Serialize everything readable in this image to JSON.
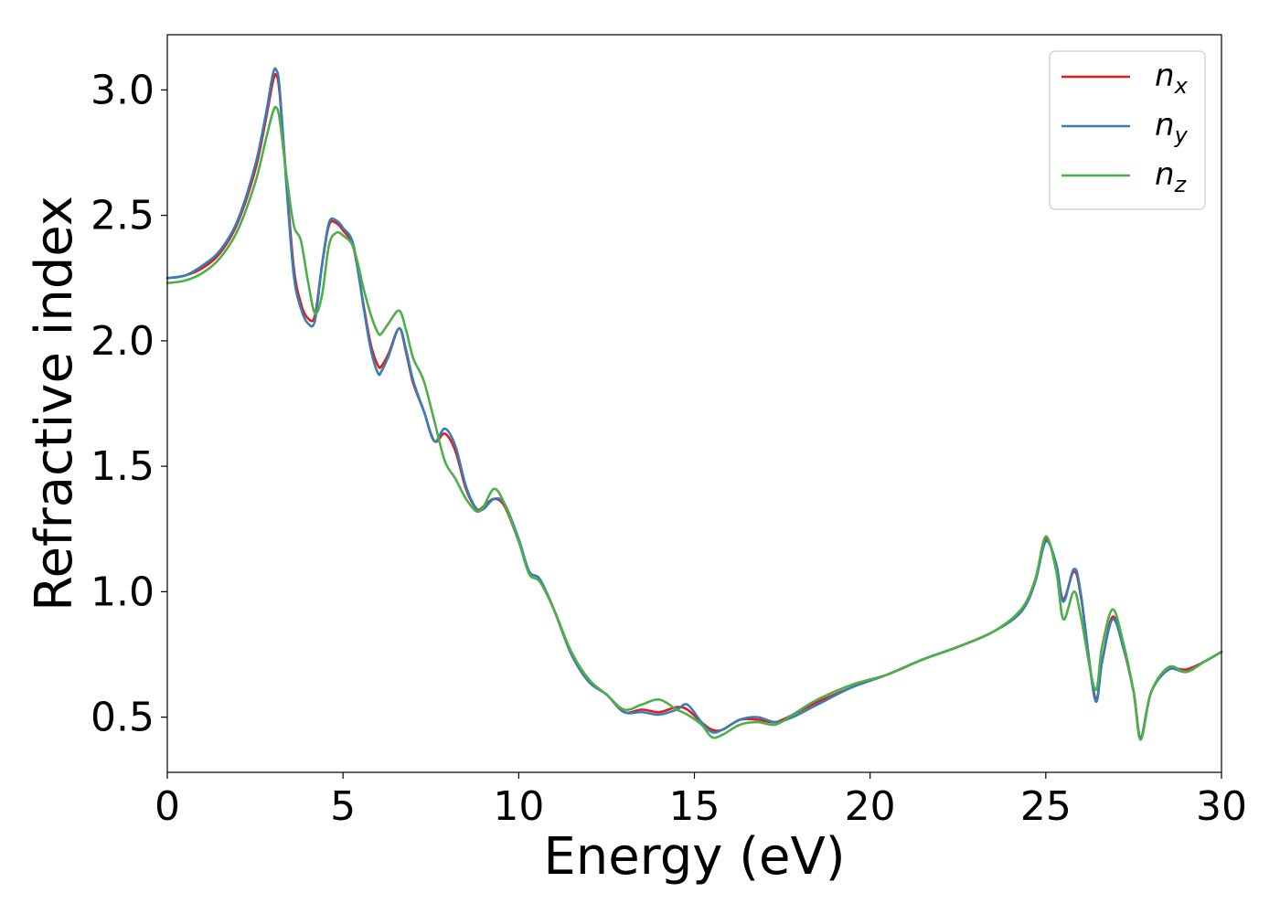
{
  "chart_data": {
    "type": "line",
    "xlabel": "Energy (eV)",
    "ylabel": "Refractive index",
    "xlim": [
      0,
      30
    ],
    "ylim": [
      0.28,
      3.22
    ],
    "xticks": [
      0,
      5,
      10,
      15,
      20,
      25,
      30
    ],
    "xtick_labels": [
      "0",
      "5",
      "10",
      "15",
      "20",
      "25",
      "30"
    ],
    "yticks": [
      0.5,
      1.0,
      1.5,
      2.0,
      2.5,
      3.0
    ],
    "ytick_labels": [
      "0.5",
      "1.0",
      "1.5",
      "2.0",
      "2.5",
      "3.0"
    ],
    "grid": false,
    "legend_position": "top-right",
    "series": [
      {
        "name": "n_x",
        "label_base": "n",
        "label_sub": "x",
        "color": "#e41a1c",
        "x": [
          0,
          0.5,
          1,
          1.5,
          2,
          2.5,
          2.8,
          3.0,
          3.1,
          3.2,
          3.4,
          3.6,
          3.8,
          4.0,
          4.2,
          4.4,
          4.6,
          4.8,
          5.0,
          5.3,
          5.6,
          5.8,
          6.0,
          6.1,
          6.3,
          6.6,
          6.8,
          7.0,
          7.3,
          7.6,
          7.9,
          8.2,
          8.5,
          8.8,
          9.0,
          9.3,
          9.6,
          10.0,
          10.3,
          10.6,
          11.0,
          11.5,
          12.0,
          12.5,
          13.0,
          13.5,
          14.0,
          14.5,
          14.8,
          15.2,
          15.5,
          15.8,
          16.3,
          16.8,
          17.3,
          17.8,
          18.5,
          19.5,
          20.5,
          21.5,
          22.5,
          23.5,
          24.3,
          24.7,
          25.0,
          25.3,
          25.5,
          25.8,
          26.0,
          26.4,
          26.6,
          26.9,
          27.2,
          27.5,
          27.7,
          28.0,
          28.5,
          29.0,
          29.5,
          30.0
        ],
        "y": [
          2.25,
          2.26,
          2.29,
          2.35,
          2.47,
          2.68,
          2.88,
          3.03,
          3.06,
          2.98,
          2.62,
          2.29,
          2.15,
          2.09,
          2.1,
          2.3,
          2.46,
          2.47,
          2.44,
          2.37,
          2.13,
          1.98,
          1.9,
          1.9,
          1.95,
          2.05,
          1.95,
          1.83,
          1.72,
          1.6,
          1.63,
          1.56,
          1.41,
          1.33,
          1.34,
          1.37,
          1.34,
          1.2,
          1.08,
          1.05,
          0.93,
          0.75,
          0.64,
          0.59,
          0.52,
          0.53,
          0.52,
          0.54,
          0.53,
          0.48,
          0.45,
          0.45,
          0.49,
          0.49,
          0.48,
          0.51,
          0.56,
          0.62,
          0.67,
          0.73,
          0.78,
          0.84,
          0.92,
          1.04,
          1.21,
          1.1,
          0.97,
          1.08,
          0.98,
          0.58,
          0.72,
          0.9,
          0.78,
          0.6,
          0.42,
          0.6,
          0.69,
          0.69,
          0.72,
          0.76
        ]
      },
      {
        "name": "n_y",
        "label_base": "n",
        "label_sub": "y",
        "color": "#377eb8",
        "x": [
          0,
          0.5,
          1,
          1.5,
          2,
          2.5,
          2.8,
          3.0,
          3.1,
          3.2,
          3.4,
          3.6,
          3.8,
          4.0,
          4.2,
          4.4,
          4.6,
          4.8,
          5.0,
          5.3,
          5.6,
          5.8,
          6.0,
          6.1,
          6.3,
          6.6,
          6.8,
          7.0,
          7.3,
          7.6,
          7.9,
          8.2,
          8.5,
          8.8,
          9.0,
          9.3,
          9.6,
          10.0,
          10.3,
          10.6,
          11.0,
          11.5,
          12.0,
          12.5,
          13.0,
          13.5,
          14.0,
          14.5,
          14.8,
          15.2,
          15.5,
          15.8,
          16.3,
          16.8,
          17.3,
          17.8,
          18.5,
          19.5,
          20.5,
          21.5,
          22.5,
          23.5,
          24.3,
          24.7,
          25.0,
          25.3,
          25.5,
          25.8,
          26.0,
          26.4,
          26.6,
          26.9,
          27.2,
          27.5,
          27.7,
          28.0,
          28.5,
          29.0,
          29.5,
          30.0
        ],
        "y": [
          2.25,
          2.26,
          2.3,
          2.36,
          2.48,
          2.7,
          2.9,
          3.06,
          3.08,
          3.0,
          2.6,
          2.26,
          2.13,
          2.07,
          2.08,
          2.3,
          2.47,
          2.48,
          2.45,
          2.38,
          2.12,
          1.96,
          1.87,
          1.88,
          1.94,
          2.05,
          1.96,
          1.84,
          1.72,
          1.6,
          1.65,
          1.58,
          1.42,
          1.33,
          1.33,
          1.37,
          1.35,
          1.21,
          1.08,
          1.05,
          0.93,
          0.75,
          0.64,
          0.59,
          0.52,
          0.52,
          0.51,
          0.53,
          0.55,
          0.48,
          0.44,
          0.45,
          0.49,
          0.5,
          0.48,
          0.5,
          0.55,
          0.62,
          0.67,
          0.73,
          0.78,
          0.84,
          0.92,
          1.04,
          1.2,
          1.11,
          0.96,
          1.09,
          0.99,
          0.57,
          0.72,
          0.89,
          0.78,
          0.6,
          0.42,
          0.6,
          0.69,
          0.68,
          0.72,
          0.76
        ]
      },
      {
        "name": "n_z",
        "label_base": "n",
        "label_sub": "z",
        "color": "#4daf4a",
        "x": [
          0,
          0.5,
          1,
          1.5,
          2,
          2.5,
          2.8,
          3.0,
          3.1,
          3.2,
          3.4,
          3.6,
          3.8,
          4.0,
          4.2,
          4.4,
          4.6,
          4.8,
          5.0,
          5.3,
          5.6,
          5.8,
          6.0,
          6.1,
          6.3,
          6.6,
          6.8,
          7.0,
          7.3,
          7.6,
          7.9,
          8.2,
          8.5,
          8.8,
          9.0,
          9.3,
          9.6,
          10.0,
          10.3,
          10.6,
          11.0,
          11.5,
          12.0,
          12.5,
          13.0,
          13.5,
          14.0,
          14.5,
          14.8,
          15.2,
          15.5,
          15.8,
          16.3,
          16.8,
          17.3,
          17.8,
          18.5,
          19.5,
          20.5,
          21.5,
          22.5,
          23.5,
          24.3,
          24.7,
          25.0,
          25.3,
          25.5,
          25.8,
          26.0,
          26.4,
          26.6,
          26.9,
          27.2,
          27.5,
          27.7,
          28.0,
          28.5,
          29.0,
          29.5,
          30.0
        ],
        "y": [
          2.23,
          2.24,
          2.27,
          2.33,
          2.44,
          2.63,
          2.8,
          2.91,
          2.93,
          2.88,
          2.65,
          2.46,
          2.4,
          2.24,
          2.11,
          2.18,
          2.38,
          2.43,
          2.42,
          2.37,
          2.2,
          2.1,
          2.03,
          2.03,
          2.07,
          2.12,
          2.04,
          1.93,
          1.84,
          1.68,
          1.52,
          1.45,
          1.37,
          1.32,
          1.34,
          1.41,
          1.35,
          1.2,
          1.07,
          1.04,
          0.93,
          0.76,
          0.65,
          0.59,
          0.53,
          0.55,
          0.57,
          0.53,
          0.51,
          0.47,
          0.42,
          0.43,
          0.47,
          0.48,
          0.47,
          0.51,
          0.57,
          0.63,
          0.67,
          0.73,
          0.78,
          0.84,
          0.93,
          1.05,
          1.22,
          1.08,
          0.89,
          1.0,
          0.9,
          0.61,
          0.78,
          0.93,
          0.8,
          0.6,
          0.41,
          0.6,
          0.7,
          0.68,
          0.72,
          0.76
        ]
      }
    ]
  }
}
